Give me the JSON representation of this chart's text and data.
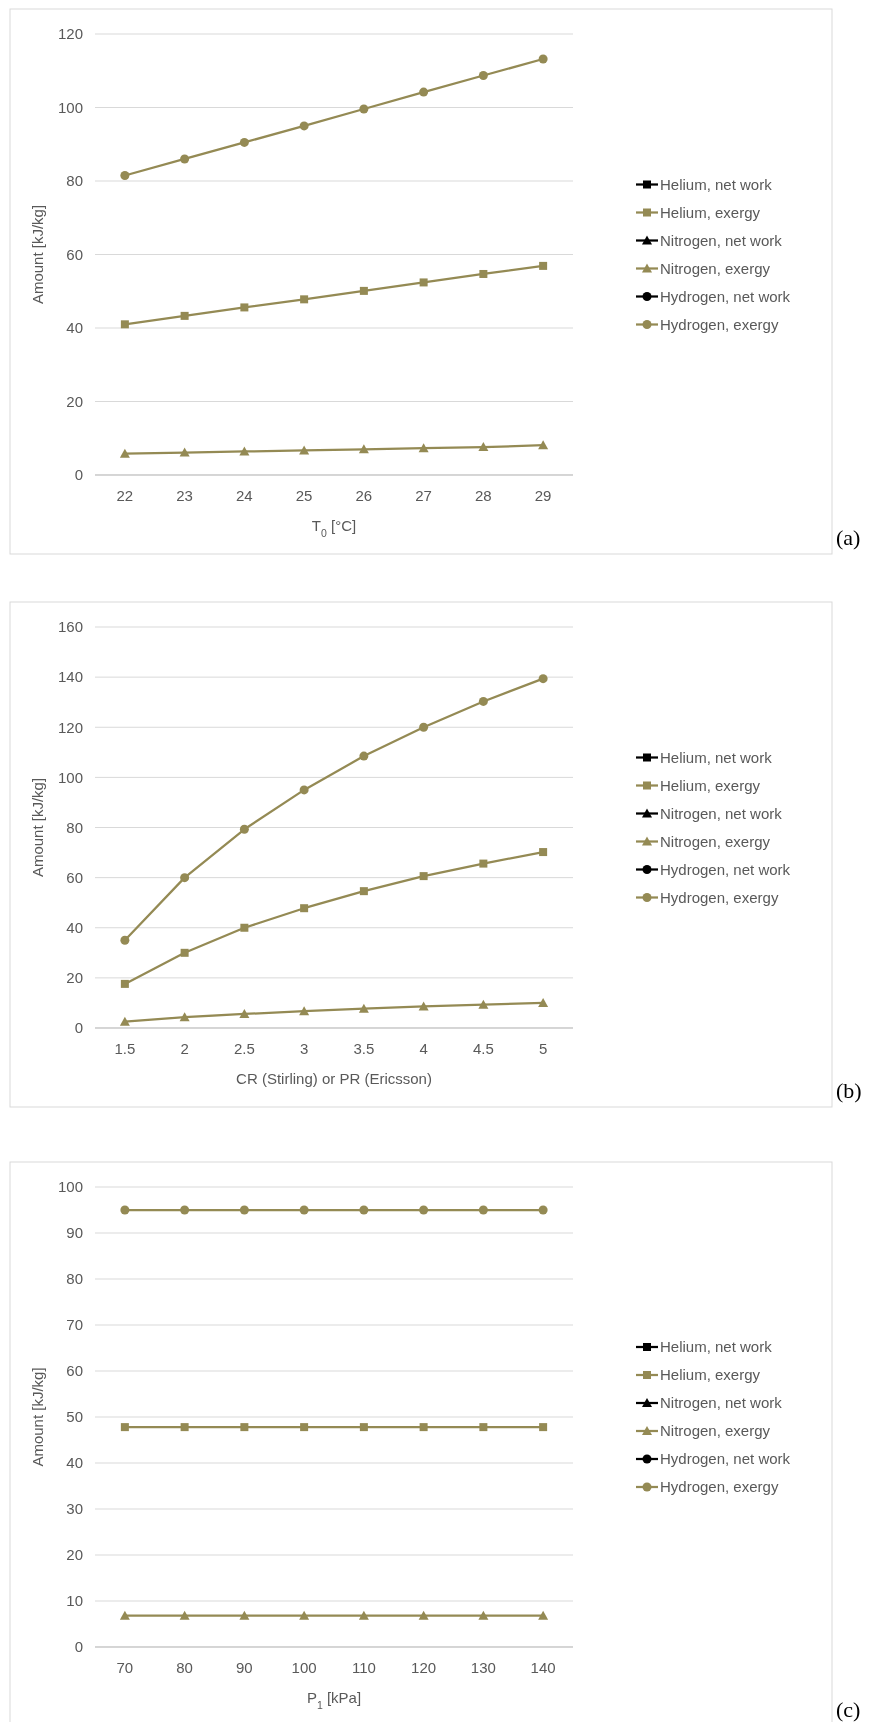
{
  "chart_data": [
    {
      "type": "line",
      "xlabel": "T$_{0}$ [°C]",
      "ylabel": "Amount [kJ/kg]",
      "categories": [
        "22",
        "23",
        "24",
        "25",
        "26",
        "27",
        "28",
        "29"
      ],
      "ylim": [
        0,
        120
      ],
      "yticks": [
        0,
        20,
        40,
        60,
        80,
        100,
        120
      ],
      "grid": "y",
      "legend": "right",
      "annotations": [
        "(a)"
      ],
      "series": [
        {
          "name": "Helium, net work",
          "color": "#000000",
          "marker": "square",
          "values": [
            null,
            null,
            null,
            null,
            null,
            null,
            null,
            null
          ]
        },
        {
          "name": "Helium, exergy",
          "color": "#948a54",
          "marker": "square",
          "values": [
            41,
            43.3,
            45.6,
            47.8,
            50.1,
            52.4,
            54.7,
            56.9
          ]
        },
        {
          "name": "Nitrogen, net work",
          "color": "#000000",
          "marker": "triangle",
          "values": [
            null,
            null,
            null,
            null,
            null,
            null,
            null,
            null
          ]
        },
        {
          "name": "Nitrogen, exergy",
          "color": "#948a54",
          "marker": "triangle",
          "values": [
            5.8,
            6.1,
            6.4,
            6.7,
            7,
            7.3,
            7.6,
            8.1
          ]
        },
        {
          "name": "Hydrogen, net work",
          "color": "#000000",
          "marker": "circle",
          "values": [
            null,
            null,
            null,
            null,
            null,
            null,
            null,
            null
          ]
        },
        {
          "name": "Hydrogen, exergy",
          "color": "#948a54",
          "marker": "circle",
          "values": [
            81.5,
            86,
            90.5,
            95,
            99.6,
            104.2,
            108.7,
            113.2
          ]
        }
      ]
    },
    {
      "type": "line",
      "xlabel": "CR (Stirling) or PR (Ericsson)",
      "ylabel": "Amount [kJ/kg]",
      "categories": [
        "1.5",
        "2",
        "2.5",
        "3",
        "3.5",
        "4",
        "4.5",
        "5"
      ],
      "ylim": [
        0,
        160
      ],
      "yticks": [
        0,
        20,
        40,
        60,
        80,
        100,
        120,
        140,
        160
      ],
      "grid": "y",
      "legend": "right",
      "annotations": [
        "(b)"
      ],
      "series": [
        {
          "name": "Helium, net work",
          "color": "#000000",
          "marker": "square",
          "values": [
            null,
            null,
            null,
            null,
            null,
            null,
            null,
            null
          ]
        },
        {
          "name": "Helium, exergy",
          "color": "#948a54",
          "marker": "square",
          "values": [
            17.6,
            30,
            40,
            47.8,
            54.6,
            60.6,
            65.6,
            70.2
          ]
        },
        {
          "name": "Nitrogen, net work",
          "color": "#000000",
          "marker": "triangle",
          "values": [
            null,
            null,
            null,
            null,
            null,
            null,
            null,
            null
          ]
        },
        {
          "name": "Nitrogen, exergy",
          "color": "#948a54",
          "marker": "triangle",
          "values": [
            2.5,
            4.3,
            5.6,
            6.7,
            7.7,
            8.6,
            9.3,
            10
          ]
        },
        {
          "name": "Hydrogen, net work",
          "color": "#000000",
          "marker": "circle",
          "values": [
            null,
            null,
            null,
            null,
            null,
            null,
            null,
            null
          ]
        },
        {
          "name": "Hydrogen, exergy",
          "color": "#948a54",
          "marker": "circle",
          "values": [
            35,
            60,
            79.3,
            95,
            108.5,
            120,
            130.3,
            139.4
          ]
        }
      ]
    },
    {
      "type": "line",
      "xlabel": "P$_{1}$ [kPa]",
      "ylabel": "Amount [kJ/kg]",
      "categories": [
        "70",
        "80",
        "90",
        "100",
        "110",
        "120",
        "130",
        "140"
      ],
      "ylim": [
        0,
        100
      ],
      "yticks": [
        0,
        10,
        20,
        30,
        40,
        50,
        60,
        70,
        80,
        90,
        100
      ],
      "grid": "y",
      "legend": "right",
      "annotations": [
        "(c)"
      ],
      "series": [
        {
          "name": "Helium, net work",
          "color": "#000000",
          "marker": "square",
          "values": [
            null,
            null,
            null,
            null,
            null,
            null,
            null,
            null
          ]
        },
        {
          "name": "Helium, exergy",
          "color": "#948a54",
          "marker": "square",
          "values": [
            47.8,
            47.8,
            47.8,
            47.8,
            47.8,
            47.8,
            47.8,
            47.8
          ]
        },
        {
          "name": "Nitrogen, net work",
          "color": "#000000",
          "marker": "triangle",
          "values": [
            null,
            null,
            null,
            null,
            null,
            null,
            null,
            null
          ]
        },
        {
          "name": "Nitrogen, exergy",
          "color": "#948a54",
          "marker": "triangle",
          "values": [
            6.8,
            6.8,
            6.8,
            6.8,
            6.8,
            6.8,
            6.8,
            6.8
          ]
        },
        {
          "name": "Hydrogen, net work",
          "color": "#000000",
          "marker": "circle",
          "values": [
            null,
            null,
            null,
            null,
            null,
            null,
            null,
            null
          ]
        },
        {
          "name": "Hydrogen, exergy",
          "color": "#948a54",
          "marker": "circle",
          "values": [
            95,
            95,
            95,
            95,
            95,
            95,
            95,
            95
          ]
        }
      ]
    }
  ]
}
